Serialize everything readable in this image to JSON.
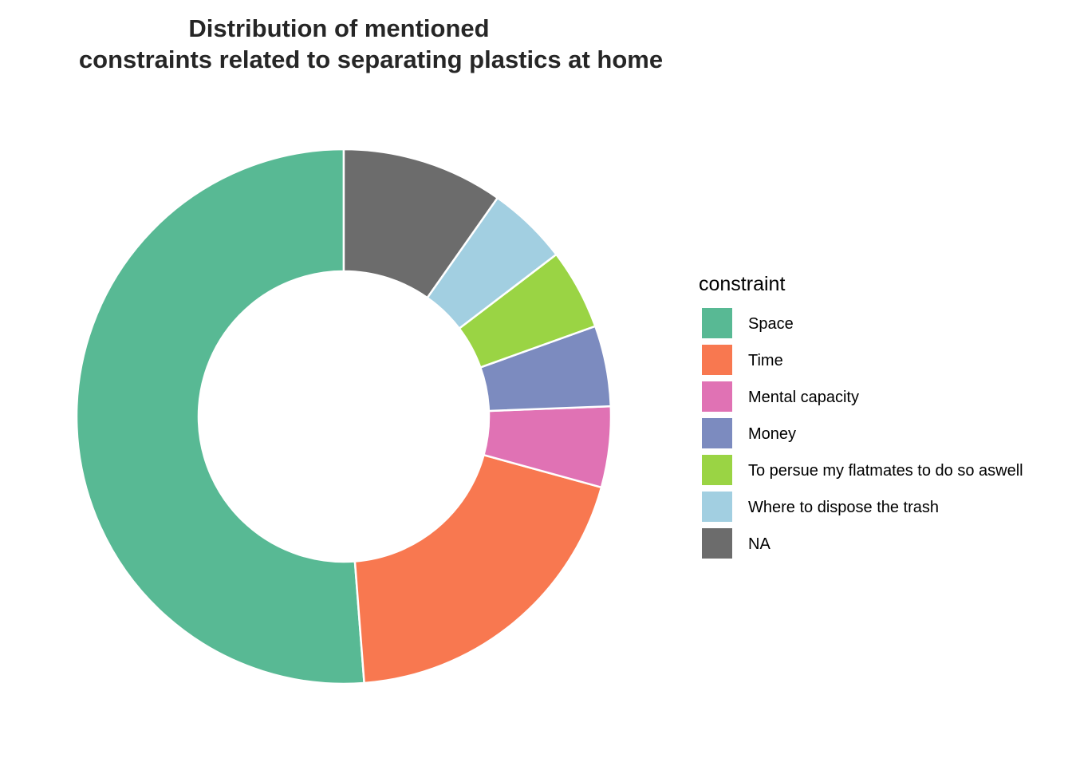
{
  "chart_data": {
    "type": "pie",
    "variant": "donut",
    "title": "Distribution of mentioned\nconstraints related to separating plastics at home",
    "title_lines": [
      "Distribution of mentioned",
      "constraints related to separating plastics at home"
    ],
    "legend_title": "constraint",
    "legend_position": "right",
    "start_angle_deg": 0,
    "direction": "counterclockwise",
    "slices": [
      {
        "label": "Space",
        "value": 52.5,
        "color": "#58B994"
      },
      {
        "label": "Time",
        "value": 20,
        "color": "#F87850"
      },
      {
        "label": "Mental capacity",
        "value": 5,
        "color": "#E072B4"
      },
      {
        "label": "Money",
        "value": 5,
        "color": "#7C8BBF"
      },
      {
        "label": "To persue my flatmates to do so aswell",
        "value": 5,
        "color": "#9AD444"
      },
      {
        "label": "Where to dispose the trash",
        "value": 5,
        "color": "#A2CFE1"
      },
      {
        "label": "NA",
        "value": 10,
        "color": "#6C6C6C"
      }
    ]
  }
}
